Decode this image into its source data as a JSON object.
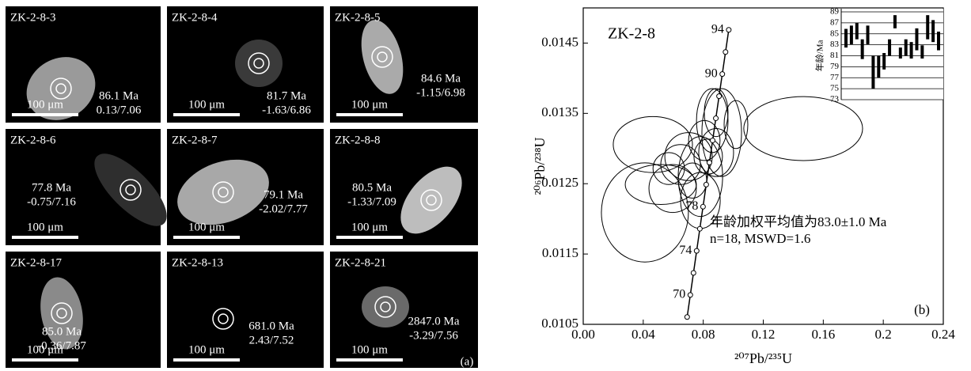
{
  "panel_a": {
    "label": "(a)",
    "grains": [
      {
        "name": "ZK-2-8-3",
        "age": "86.1 Ma",
        "ratio": "0.13/7.06",
        "scale": "100 μm"
      },
      {
        "name": "ZK-2-8-4",
        "age": "81.7 Ma",
        "ratio": "-1.63/6.86",
        "scale": "100 μm"
      },
      {
        "name": "ZK-2-8-5",
        "age": "84.6 Ma",
        "ratio": "-1.15/6.98",
        "scale": "100 μm"
      },
      {
        "name": "ZK-2-8-6",
        "age": "77.8 Ma",
        "ratio": "-0.75/7.16",
        "scale": "100 μm"
      },
      {
        "name": "ZK-2-8-7",
        "age": "79.1 Ma",
        "ratio": "-2.02/7.77",
        "scale": "100 μm"
      },
      {
        "name": "ZK-2-8-8",
        "age": "80.5 Ma",
        "ratio": "-1.33/7.09",
        "scale": "100 μm"
      },
      {
        "name": "ZK-2-8-17",
        "age": "85.0 Ma",
        "ratio": "-0.36/7.87",
        "scale": "100 μm"
      },
      {
        "name": "ZK-2-8-13",
        "age": "681.0 Ma",
        "ratio": "2.43/7.52",
        "scale": "100 μm"
      },
      {
        "name": "ZK-2-8-21",
        "age": "2847.0 Ma",
        "ratio": "-3.29/7.56",
        "scale": "100 μm"
      }
    ]
  },
  "chart_data": [
    {
      "type": "concordia",
      "title": "ZK-2-8",
      "panel_label": "(b)",
      "xlabel": "²⁰⁷Pb/²³⁵U",
      "ylabel": "²⁰⁶Pb/²³⁸U",
      "annotations": [
        "年龄加权平均值为83.0±1.0 Ma",
        "n=18, MSWD=1.6"
      ],
      "xlim": [
        0,
        0.24
      ],
      "ylim": [
        0.0105,
        0.015
      ],
      "xticks": [
        {
          "value": 0,
          "label": "0.00"
        },
        0.04,
        0.08,
        0.12,
        0.16,
        0.2,
        0.24
      ],
      "yticks": [
        0.0105,
        0.0115,
        0.0125,
        0.0135,
        0.0145
      ],
      "concordia": {
        "x": [
          0.069263,
          0.07137,
          0.073483,
          0.075599,
          0.07772,
          0.079845,
          0.081973,
          0.084106,
          0.086244,
          0.088385,
          0.090531,
          0.092681,
          0.094835,
          0.096993
        ],
        "y": [
          0.010604,
          0.010918,
          0.011231,
          0.011545,
          0.011859,
          0.012173,
          0.012487,
          0.012801,
          0.013115,
          0.01343,
          0.013744,
          0.014059,
          0.014373,
          0.014688
        ],
        "labels": [
          null,
          70,
          null,
          74,
          null,
          78,
          null,
          null,
          null,
          null,
          null,
          90,
          null,
          94
        ]
      },
      "ellipses": {
        "x": [
          0.1466,
          0.0411,
          0.0464,
          0.0517,
          0.0781,
          0.086,
          0.0923,
          0.0702,
          0.0781,
          0.0649,
          0.0886,
          0.1018,
          0.0807,
          0.0596,
          0.0833,
          0.0728,
          0.0886,
          0.057
        ],
        "y": [
          0.013284,
          0.012091,
          0.013057,
          0.012489,
          0.012602,
          0.013398,
          0.013227,
          0.012886,
          0.012261,
          0.012773,
          0.013511,
          0.013341,
          0.013114,
          0.012432,
          0.012886,
          0.012545,
          0.012943,
          0.012716
        ],
        "sx": [
          0.0396,
          0.029,
          0.0264,
          0.0237,
          0.0148,
          0.0105,
          0.0132,
          0.0158,
          0.0132,
          0.0132,
          0.0079,
          0.0079,
          0.0105,
          0.0158,
          0.0095,
          0.0095,
          0.0116,
          0.0105
        ],
        "sy": [
          0.000455,
          0.000705,
          0.000398,
          0.000284,
          0.000568,
          0.000455,
          0.000625,
          0.000341,
          0.000398,
          0.000284,
          0.000341,
          0.000341,
          0.000284,
          0.000341,
          0.00025,
          0.00025,
          0.000341,
          0.000227
        ]
      }
    },
    {
      "type": "errorbar",
      "ylabel": "年龄/Ma",
      "ylim": [
        73,
        89
      ],
      "yticks": [
        73,
        75,
        77,
        79,
        81,
        83,
        85,
        87,
        89
      ],
      "values": [
        84.2,
        84.8,
        85.5,
        82.2,
        84.8,
        78,
        79,
        80,
        82.5,
        87.2,
        81.5,
        82.5,
        82,
        84,
        81.7,
        86.2,
        85.5,
        83.7
      ],
      "errors": [
        1.7,
        1.7,
        1.5,
        1.8,
        1.7,
        3,
        2,
        1.5,
        1.5,
        1.2,
        1,
        1.5,
        1.5,
        2,
        1.2,
        2.2,
        2,
        1.7
      ]
    }
  ]
}
